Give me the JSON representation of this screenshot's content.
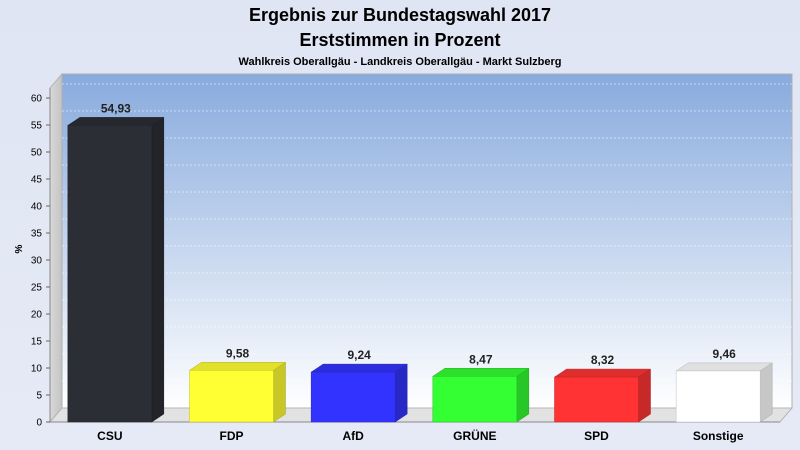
{
  "title": "Ergebnis zur Bundestagswahl 2017",
  "subtitle": "Erststimmen in Prozent",
  "caption": "Wahlkreis Oberallgäu - Landkreis Oberallgäu - Markt Sulzberg",
  "chart_data": {
    "type": "bar",
    "categories": [
      "CSU",
      "FDP",
      "AfD",
      "GRÜNE",
      "SPD",
      "Sonstige"
    ],
    "values": [
      54.93,
      9.58,
      9.24,
      8.47,
      8.32,
      9.46
    ],
    "value_labels": [
      "54,93",
      "9,58",
      "9,24",
      "8,47",
      "8,32",
      "9,46"
    ],
    "colors": [
      "#2b2e35",
      "#ffff33",
      "#3333ff",
      "#33ff33",
      "#ff3333",
      "#ffffff"
    ],
    "ylabel": "%",
    "ylim": [
      0,
      60
    ],
    "yticks": [
      0,
      5,
      10,
      15,
      20,
      25,
      30,
      35,
      40,
      45,
      50,
      55,
      60
    ],
    "grid": true,
    "style": "3d"
  }
}
